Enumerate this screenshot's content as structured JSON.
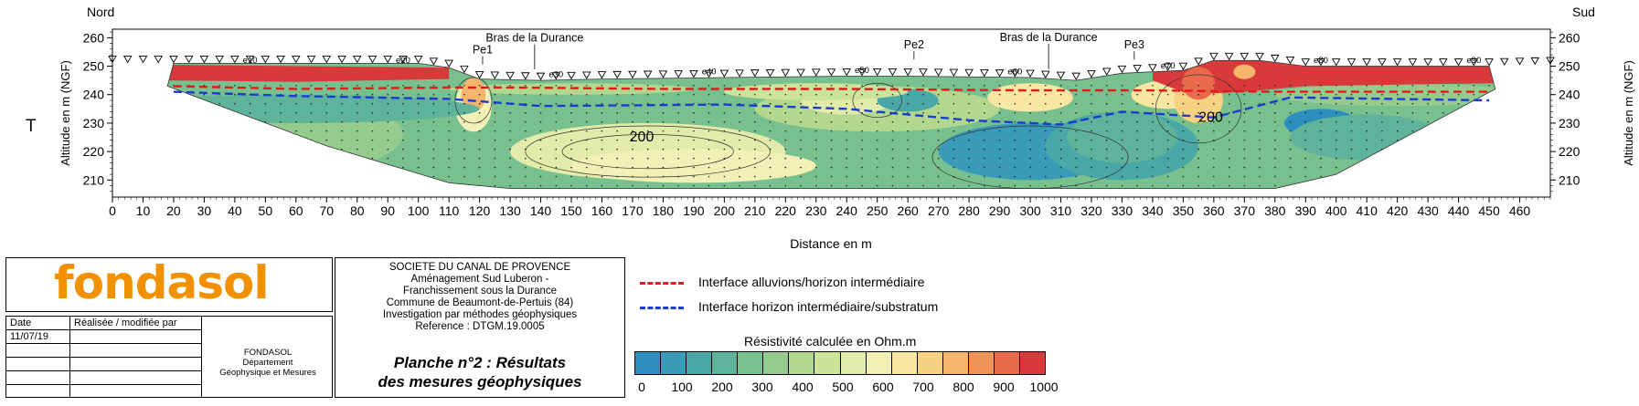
{
  "section": {
    "label_north": "Nord",
    "label_south": "Sud",
    "side_marker": "T",
    "y_axis_label": "Altitude en m (NGF)",
    "x_axis_label": "Distance en m",
    "y_ticks": [
      "210",
      "220",
      "230",
      "240",
      "250",
      "260"
    ],
    "x_ticks": [
      "0",
      "10",
      "20",
      "30",
      "40",
      "50",
      "60",
      "70",
      "80",
      "90",
      "100",
      "110",
      "120",
      "130",
      "140",
      "150",
      "160",
      "170",
      "180",
      "190",
      "200",
      "210",
      "220",
      "230",
      "240",
      "250",
      "260",
      "270",
      "280",
      "290",
      "300",
      "310",
      "320",
      "330",
      "340",
      "350",
      "360",
      "370",
      "380",
      "390",
      "400",
      "410",
      "420",
      "430",
      "440",
      "450",
      "460"
    ],
    "electrode_labels": [
      {
        "text": "e10",
        "distance": 45,
        "altitude": 251.2
      },
      {
        "text": "e20",
        "distance": 95,
        "altitude": 251.2
      },
      {
        "text": "e30",
        "distance": 145,
        "altitude": 246.2
      },
      {
        "text": "e40",
        "distance": 195,
        "altitude": 247.2
      },
      {
        "text": "e50",
        "distance": 245,
        "altitude": 247.6
      },
      {
        "text": "e60",
        "distance": 295,
        "altitude": 247.2
      },
      {
        "text": "e70",
        "distance": 345,
        "altitude": 249.2
      },
      {
        "text": "e80",
        "distance": 395,
        "altitude": 251.2
      },
      {
        "text": "e90",
        "distance": 445,
        "altitude": 251.2
      }
    ],
    "annotations": [
      {
        "text": "Pe1",
        "distance": 121,
        "altitude": 254.5
      },
      {
        "text": "Bras de la Durance",
        "distance": 138,
        "altitude": 258.6
      },
      {
        "text": "Pe2",
        "distance": 262,
        "altitude": 256.2
      },
      {
        "text": "Bras de la Durance",
        "distance": 306,
        "altitude": 258.8
      },
      {
        "text": "Pe3",
        "distance": 334,
        "altitude": 256.2
      }
    ],
    "contour_labels": [
      {
        "text": "200",
        "distance": 173,
        "altitude": 223.5
      },
      {
        "text": "200",
        "distance": 359,
        "altitude": 230.4
      }
    ]
  },
  "chart_data": {
    "type": "heatmap",
    "xlabel": "Distance en m",
    "ylabel": "Altitude en m (NGF)",
    "xlim": [
      0,
      470
    ],
    "ylim": [
      204,
      263
    ],
    "surface_profile": [
      {
        "distance": 0,
        "altitude": 251
      },
      {
        "distance": 20,
        "altitude": 251
      },
      {
        "distance": 100,
        "altitude": 251
      },
      {
        "distance": 110,
        "altitude": 249.5
      },
      {
        "distance": 120,
        "altitude": 245.5
      },
      {
        "distance": 140,
        "altitude": 245
      },
      {
        "distance": 160,
        "altitude": 245.5
      },
      {
        "distance": 200,
        "altitude": 246
      },
      {
        "distance": 240,
        "altitude": 246.5
      },
      {
        "distance": 260,
        "altitude": 246.5
      },
      {
        "distance": 300,
        "altitude": 246
      },
      {
        "distance": 315,
        "altitude": 245
      },
      {
        "distance": 330,
        "altitude": 247.5
      },
      {
        "distance": 350,
        "altitude": 248.5
      },
      {
        "distance": 360,
        "altitude": 252
      },
      {
        "distance": 375,
        "altitude": 252
      },
      {
        "distance": 390,
        "altitude": 250
      },
      {
        "distance": 450,
        "altitude": 250
      },
      {
        "distance": 470,
        "altitude": 250.5
      }
    ],
    "section_bottom": [
      {
        "distance": 18,
        "altitude": 243
      },
      {
        "distance": 70,
        "altitude": 222
      },
      {
        "distance": 110,
        "altitude": 209
      },
      {
        "distance": 130,
        "altitude": 207
      },
      {
        "distance": 380,
        "altitude": 207
      },
      {
        "distance": 400,
        "altitude": 212
      },
      {
        "distance": 452,
        "altitude": 242
      }
    ],
    "interfaces": [
      {
        "name": "Interface alluvions/horizon intermédiaire",
        "color": "#e31a1c",
        "points": [
          {
            "distance": 20,
            "altitude": 243
          },
          {
            "distance": 60,
            "altitude": 242
          },
          {
            "distance": 110,
            "altitude": 242.5
          },
          {
            "distance": 130,
            "altitude": 242.5
          },
          {
            "distance": 180,
            "altitude": 242
          },
          {
            "distance": 240,
            "altitude": 242
          },
          {
            "distance": 300,
            "altitude": 241.5
          },
          {
            "distance": 340,
            "altitude": 241.5
          },
          {
            "distance": 380,
            "altitude": 241
          },
          {
            "distance": 450,
            "altitude": 241
          }
        ]
      },
      {
        "name": "Interface horizon intermédiaire/substratum",
        "color": "#1a3ccf",
        "points": [
          {
            "distance": 20,
            "altitude": 241
          },
          {
            "distance": 60,
            "altitude": 239.5
          },
          {
            "distance": 110,
            "altitude": 238.5
          },
          {
            "distance": 140,
            "altitude": 236
          },
          {
            "distance": 200,
            "altitude": 236.5
          },
          {
            "distance": 240,
            "altitude": 235
          },
          {
            "distance": 280,
            "altitude": 231
          },
          {
            "distance": 310,
            "altitude": 229.5
          },
          {
            "distance": 330,
            "altitude": 234
          },
          {
            "distance": 360,
            "altitude": 232
          },
          {
            "distance": 385,
            "altitude": 239
          },
          {
            "distance": 450,
            "altitude": 238
          }
        ]
      }
    ],
    "resistivity_scale": {
      "title": "Résistivité calculée en Ohm.m",
      "unit": "Ohm.m",
      "min": 0,
      "max": 1000,
      "bins": 16,
      "colors": [
        "#2c8fbf",
        "#3a9bb8",
        "#4aa7a7",
        "#5fb39a",
        "#78c08e",
        "#95cb8c",
        "#b2d78e",
        "#cce39a",
        "#e2ebaa",
        "#f1f0b6",
        "#f8e7a2",
        "#f8d283",
        "#f5b56a",
        "#f09359",
        "#e86a4a",
        "#d8393a"
      ],
      "tick_labels": [
        "0",
        "100",
        "200",
        "300",
        "400",
        "500",
        "600",
        "700",
        "800",
        "900",
        "1000"
      ]
    }
  },
  "title_block": {
    "logo": "fondasol",
    "date_header": "Date",
    "realised_header": "Réalisée / modifiée par",
    "date_value": "11/07/19",
    "department_lines": [
      "FONDASOL",
      "Département",
      "Géophysique et Mesures"
    ],
    "project_lines": [
      "SOCIETE DU CANAL DE PROVENCE",
      "Aménagement Sud Luberon -",
      "Franchissement sous la Durance",
      "Commune de Beaumont-de-Pertuis (84)",
      "Investigation par méthodes géophysiques",
      "Reference : DTGM.19.0005"
    ],
    "plate_lines": [
      "Planche n°2 : Résultats",
      "des mesures géophysiques"
    ]
  },
  "legend": {
    "red_label": "Interface alluvions/horizon intermédiaire",
    "blue_label": "Interface horizon intermédiaire/substratum",
    "red_color": "#e31a1c",
    "blue_color": "#1a3ccf"
  }
}
